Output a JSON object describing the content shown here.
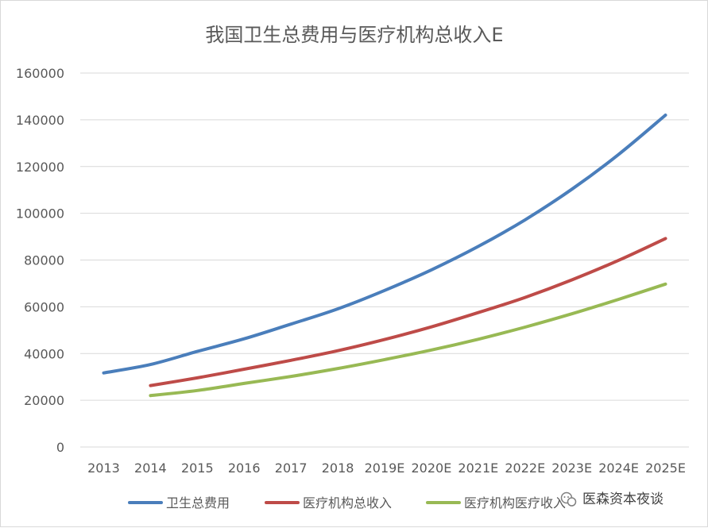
{
  "chart_data": {
    "type": "line",
    "title": "我国卫生总费用与医疗机构总收入E",
    "categories": [
      "2013",
      "2014",
      "2015",
      "2016",
      "2017",
      "2018",
      "2019E",
      "2020E",
      "2021E",
      "2022E",
      "2023E",
      "2024E",
      "2025E"
    ],
    "ylim": [
      0,
      160000
    ],
    "yticks": [
      0,
      20000,
      40000,
      60000,
      80000,
      100000,
      120000,
      140000,
      160000
    ],
    "grid": true,
    "legend_position": "bottom",
    "series": [
      {
        "name": "卫生总费用",
        "color": "#4a7ebb",
        "values": [
          31700,
          35300,
          40900,
          46300,
          52600,
          59100,
          67000,
          75800,
          85800,
          97200,
          110300,
          125200,
          142000
        ]
      },
      {
        "name": "医疗机构总收入",
        "color": "#be4b48",
        "values": [
          null,
          26300,
          29600,
          33300,
          37100,
          41200,
          46000,
          51400,
          57500,
          64000,
          71500,
          79900,
          89200
        ]
      },
      {
        "name": "医疗机构医疗收入",
        "color": "#98b954",
        "values": [
          null,
          22000,
          24200,
          27200,
          30200,
          33600,
          37400,
          41500,
          46100,
          51300,
          57000,
          63200,
          69700
        ]
      }
    ]
  },
  "watermark": {
    "text": "医森资本夜谈",
    "icon": "wechat-icon"
  }
}
